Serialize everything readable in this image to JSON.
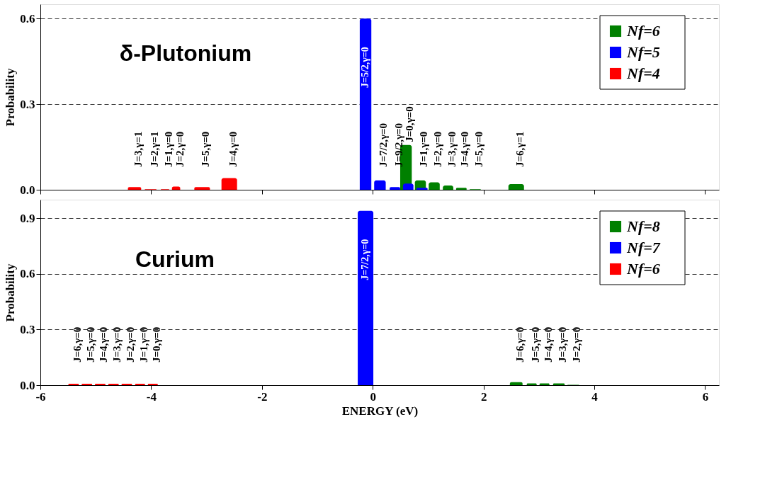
{
  "chart_data": [
    {
      "type": "bar",
      "title": "δ-Plutonium",
      "ylabel": "Probability",
      "xlim": [
        -6,
        6.25
      ],
      "xticks": [
        {
          "value": -6,
          "label": null
        },
        {
          "value": -4,
          "label": null
        },
        {
          "value": -2,
          "label": null
        },
        {
          "value": 0,
          "label": null
        },
        {
          "value": 2,
          "label": null
        },
        {
          "value": 4,
          "label": null
        },
        {
          "value": 6,
          "label": null
        }
      ],
      "ylim": [
        0,
        0.65
      ],
      "yticks": [
        {
          "value": 0,
          "label": "0.0"
        },
        0.3,
        0.6
      ],
      "grid": "y",
      "legend": "top right",
      "tick_labels": "y",
      "series": [
        {
          "name": "Nf=6",
          "color": "#008000",
          "x": [
            0.6,
            0.86,
            1.11,
            1.36,
            1.6,
            1.85,
            2.59
          ],
          "values": [
            0.157,
            0.033,
            0.026,
            0.015,
            0.007,
            0.002,
            0.02
          ]
        },
        {
          "name": "Nf=5",
          "color": "#0000ff",
          "x": [
            -0.13,
            0.13,
            0.4,
            0.64,
            0.89
          ],
          "values": [
            0.6,
            0.033,
            0.009,
            0.022,
            0.007
          ]
        },
        {
          "name": "Nf=4",
          "color": "#ff0000",
          "x": [
            -4.3,
            -4.01,
            -3.75,
            -3.55,
            -3.08,
            -2.59
          ],
          "values": [
            0.009,
            0.002,
            0.002,
            0.011,
            0.009,
            0.041
          ]
        }
      ],
      "annotations": [
        {
          "text": "J=3,γ=1",
          "x": -4.3,
          "y": 0.009
        },
        {
          "text": "J=2,γ=1",
          "x": -4.01,
          "y": 0.002
        },
        {
          "text": "J=1,γ=0",
          "x": -3.75,
          "y": 0.002
        },
        {
          "text": "J=2,γ=0",
          "x": -3.55,
          "y": 0.011
        },
        {
          "text": "J=5,γ=0",
          "x": -3.08,
          "y": 0.009
        },
        {
          "text": "J=4,γ=0",
          "x": -2.59,
          "y": 0.041
        },
        {
          "text": "J=5/2,γ=0",
          "x": -0.13,
          "y": 0.6
        },
        {
          "text": "J=7/2,γ=0",
          "x": 0.13,
          "y": 0.033
        },
        {
          "text": "J=9/2,γ=0",
          "x": 0.4,
          "y": 0.009
        },
        {
          "text": "J=0,γ=0",
          "x": 0.6,
          "y": 0.157
        },
        {
          "text": "J=1,γ=0",
          "x": 0.86,
          "y": 0.033
        },
        {
          "text": "J=2,γ=0",
          "x": 1.11,
          "y": 0.026
        },
        {
          "text": "J=3,γ=0",
          "x": 1.36,
          "y": 0.015
        },
        {
          "text": "J=4,γ=0",
          "x": 1.6,
          "y": 0.007
        },
        {
          "text": "J=5,γ=0",
          "x": 1.85,
          "y": 0.002
        },
        {
          "text": "J=6,γ=1",
          "x": 2.59,
          "y": 0.02
        }
      ]
    },
    {
      "type": "bar",
      "title": "Curium",
      "xlabel": "ENERGY (eV)",
      "ylabel": "Probability",
      "xlim": [
        -6,
        6.25
      ],
      "xticks": [
        -6,
        -4,
        -2,
        0,
        2,
        4,
        6
      ],
      "ylim": [
        0,
        1.0
      ],
      "yticks": [
        {
          "value": 0,
          "label": "0.0"
        },
        0.3,
        0.6,
        0.9
      ],
      "grid": "y",
      "legend": "top right",
      "series": [
        {
          "name": "Nf=8",
          "color": "#008000",
          "x": [
            2.59,
            2.87,
            3.1,
            3.36,
            3.62
          ],
          "values": [
            0.016,
            0.01,
            0.01,
            0.01,
            0.002
          ]
        },
        {
          "name": "Nf=7",
          "color": "#0000ff",
          "x": [
            -0.13
          ],
          "values": [
            0.94
          ]
        },
        {
          "name": "Nf=6",
          "color": "#ff0000",
          "x": [
            -5.4,
            -5.16,
            -4.92,
            -4.68,
            -4.44,
            -4.2,
            -3.97
          ],
          "values": [
            0.008,
            0.008,
            0.008,
            0.008,
            0.008,
            0.008,
            0.008
          ]
        }
      ],
      "annotations": [
        {
          "text": "J=6,γ=0",
          "x": -5.4,
          "y": 0.008
        },
        {
          "text": "J=5,γ=0",
          "x": -5.16,
          "y": 0.008
        },
        {
          "text": "J=4,γ=0",
          "x": -4.92,
          "y": 0.008
        },
        {
          "text": "J=3,γ=0",
          "x": -4.68,
          "y": 0.008
        },
        {
          "text": "J=2,γ=0",
          "x": -4.44,
          "y": 0.008
        },
        {
          "text": "J=1,γ=0",
          "x": -4.2,
          "y": 0.008
        },
        {
          "text": "J=0,γ=0",
          "x": -3.97,
          "y": 0.008
        },
        {
          "text": "J=7/2,γ=0",
          "x": -0.13,
          "y": 0.94
        },
        {
          "text": "J=6,γ=0",
          "x": 2.59,
          "y": 0.016
        },
        {
          "text": "J=5,γ=0",
          "x": 2.87,
          "y": 0.01
        },
        {
          "text": "J=4,γ=0",
          "x": 3.1,
          "y": 0.01
        },
        {
          "text": "J=3,γ=0",
          "x": 3.36,
          "y": 0.01
        },
        {
          "text": "J=2,γ=0",
          "x": 3.62,
          "y": 0.002
        }
      ]
    }
  ]
}
